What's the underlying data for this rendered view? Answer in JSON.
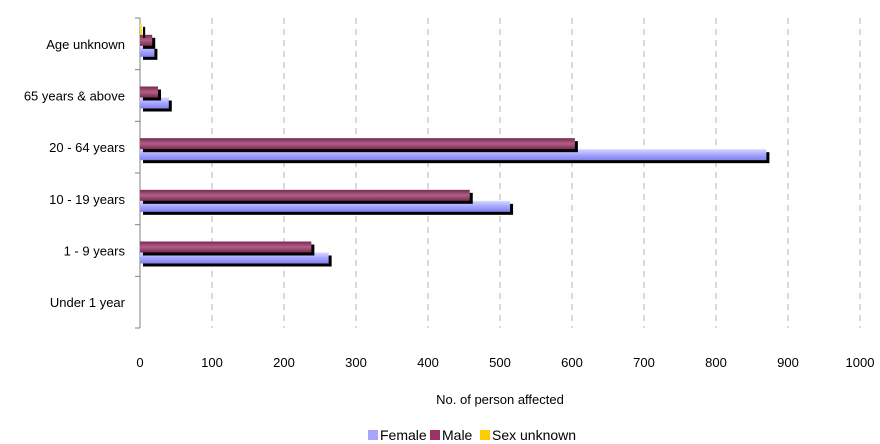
{
  "chart_data": {
    "type": "bar",
    "orientation": "horizontal",
    "categories": [
      "Under 1 year",
      "1 - 9 years",
      "10 - 19 years",
      "20 - 64 years",
      "65 years & above",
      "Age unknown"
    ],
    "series": [
      {
        "name": "Female",
        "values": [
          0,
          262,
          514,
          870,
          40,
          20
        ],
        "color": "#a6a6ff"
      },
      {
        "name": "Male",
        "values": [
          0,
          238,
          458,
          604,
          25,
          17
        ],
        "color": "#993366"
      },
      {
        "name": "Sex unknown",
        "values": [
          0,
          0,
          0,
          0,
          0,
          3
        ],
        "color": "#ffcc00"
      }
    ],
    "xlabel": "No. of person affected",
    "xlim": [
      0,
      1000
    ],
    "xticks": [
      0,
      100,
      200,
      300,
      400,
      500,
      600,
      700,
      800,
      900,
      1000
    ],
    "grid": "vertical-dashed",
    "legend_position": "bottom"
  }
}
